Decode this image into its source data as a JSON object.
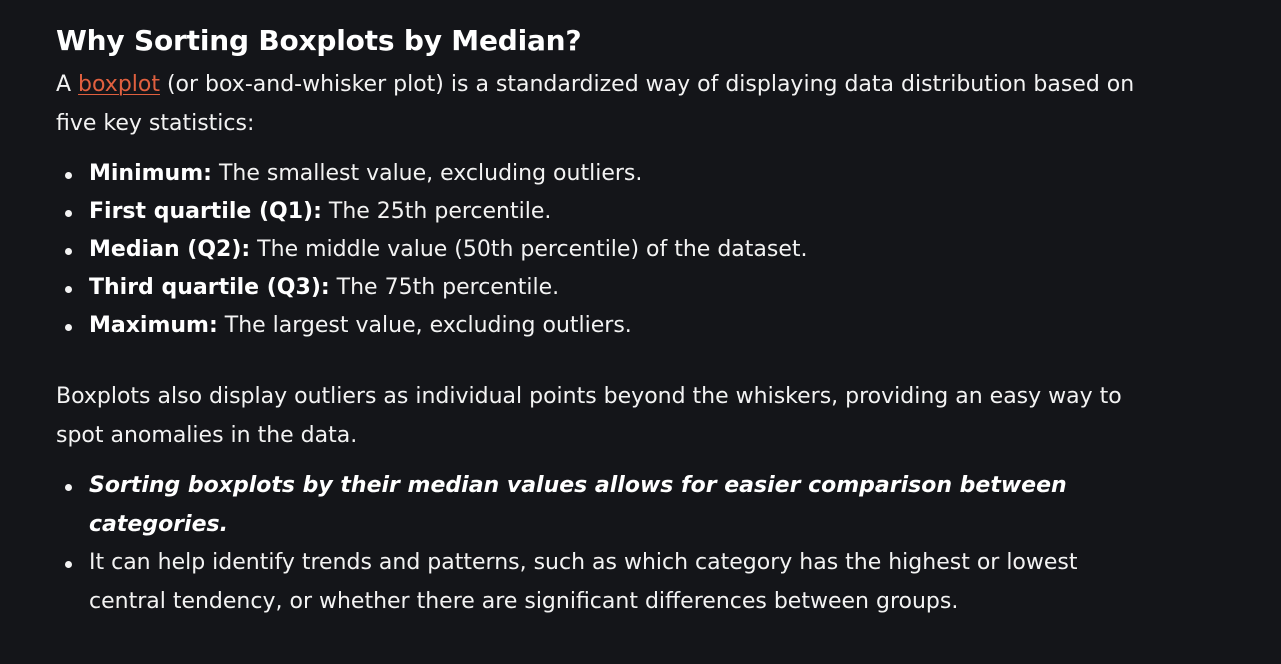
{
  "heading": "Why Sorting Boxplots by Median?",
  "intro": {
    "prefix": "A ",
    "link_text": "boxplot",
    "suffix": " (or box-and-whisker plot) is a standardized way of displaying data distribution based on five key statistics:"
  },
  "stats": [
    {
      "term": "Minimum:",
      "desc": " The smallest value, excluding outliers."
    },
    {
      "term": "First quartile (Q1):",
      "desc": " The 25th percentile."
    },
    {
      "term": "Median (Q2):",
      "desc": " The middle value (50th percentile) of the dataset."
    },
    {
      "term": "Third quartile (Q3):",
      "desc": " The 75th percentile."
    },
    {
      "term": "Maximum:",
      "desc": " The largest value, excluding outliers."
    }
  ],
  "outliers_paragraph": "Boxplots also display outliers as individual points beyond the whiskers, providing an easy way to spot anomalies in the data.",
  "benefits": [
    "Sorting boxplots by their median values allows for easier comparison between categories.",
    "It can help identify trends and patterns, such as which category has the highest or lowest central tendency, or whether there are significant differences between groups."
  ],
  "colors": {
    "background": "#141519",
    "text": "#f3f3f3",
    "link": "#e0603f"
  }
}
